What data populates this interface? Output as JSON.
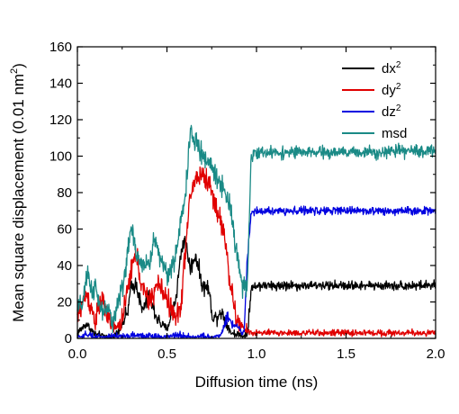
{
  "chart_data": {
    "type": "line",
    "title": "",
    "xlabel": "Diffusion time (ns)",
    "ylabel": "Mean square displacement (0.01 nm",
    "ylabel_unit_sup": "2",
    "ylabel_close": ")",
    "xlim": [
      0.0,
      2.0
    ],
    "ylim": [
      0,
      160
    ],
    "xticks": [
      0.0,
      0.5,
      1.0,
      1.5,
      2.0
    ],
    "xtick_labels": [
      "0.0",
      "0.5",
      "1.0",
      "1.5",
      "2.0"
    ],
    "yticks": [
      0,
      20,
      40,
      60,
      80,
      100,
      120,
      140,
      160
    ],
    "ytick_labels": [
      "0",
      "20",
      "40",
      "60",
      "80",
      "100",
      "120",
      "140",
      "160"
    ],
    "grid": false,
    "legend_position": "top-right",
    "series": [
      {
        "name": "dx",
        "name_sup": "2",
        "color": "#000000",
        "noise": 2.5,
        "points": [
          [
            0.0,
            3
          ],
          [
            0.05,
            8
          ],
          [
            0.1,
            2
          ],
          [
            0.15,
            1
          ],
          [
            0.2,
            0
          ],
          [
            0.24,
            6
          ],
          [
            0.28,
            14
          ],
          [
            0.3,
            28
          ],
          [
            0.33,
            30
          ],
          [
            0.36,
            15
          ],
          [
            0.4,
            22
          ],
          [
            0.45,
            10
          ],
          [
            0.5,
            5
          ],
          [
            0.55,
            22
          ],
          [
            0.58,
            48
          ],
          [
            0.6,
            55
          ],
          [
            0.63,
            38
          ],
          [
            0.66,
            46
          ],
          [
            0.7,
            28
          ],
          [
            0.73,
            28
          ],
          [
            0.76,
            10
          ],
          [
            0.8,
            15
          ],
          [
            0.83,
            9
          ],
          [
            0.86,
            3
          ],
          [
            0.9,
            2
          ],
          [
            0.93,
            1
          ],
          [
            0.95,
            3
          ],
          [
            0.97,
            27
          ],
          [
            1.0,
            29
          ],
          [
            1.25,
            29
          ],
          [
            1.5,
            29
          ],
          [
            1.75,
            29
          ],
          [
            2.0,
            29
          ]
        ]
      },
      {
        "name": "dy",
        "name_sup": "2",
        "color": "#e00000",
        "noise": 3.5,
        "points": [
          [
            0.0,
            12
          ],
          [
            0.05,
            25
          ],
          [
            0.1,
            10
          ],
          [
            0.14,
            22
          ],
          [
            0.18,
            8
          ],
          [
            0.22,
            5
          ],
          [
            0.26,
            14
          ],
          [
            0.3,
            38
          ],
          [
            0.33,
            46
          ],
          [
            0.36,
            28
          ],
          [
            0.4,
            20
          ],
          [
            0.45,
            30
          ],
          [
            0.5,
            22
          ],
          [
            0.55,
            10
          ],
          [
            0.58,
            20
          ],
          [
            0.6,
            45
          ],
          [
            0.63,
            78
          ],
          [
            0.66,
            88
          ],
          [
            0.7,
            90
          ],
          [
            0.74,
            84
          ],
          [
            0.78,
            70
          ],
          [
            0.82,
            58
          ],
          [
            0.86,
            25
          ],
          [
            0.89,
            10
          ],
          [
            0.92,
            6
          ],
          [
            0.95,
            4
          ],
          [
            0.97,
            3
          ],
          [
            1.0,
            3
          ],
          [
            1.5,
            3
          ],
          [
            2.0,
            3
          ]
        ]
      },
      {
        "name": "dz",
        "name_sup": "2",
        "color": "#0000e0",
        "noise": 2.2,
        "points": [
          [
            0.0,
            0
          ],
          [
            0.05,
            2
          ],
          [
            0.1,
            1
          ],
          [
            0.15,
            0
          ],
          [
            0.2,
            1
          ],
          [
            0.25,
            0
          ],
          [
            0.3,
            2
          ],
          [
            0.4,
            1
          ],
          [
            0.5,
            0
          ],
          [
            0.55,
            2
          ],
          [
            0.6,
            1
          ],
          [
            0.65,
            0
          ],
          [
            0.7,
            1
          ],
          [
            0.75,
            0
          ],
          [
            0.8,
            2
          ],
          [
            0.84,
            12
          ],
          [
            0.87,
            8
          ],
          [
            0.9,
            5
          ],
          [
            0.93,
            3
          ],
          [
            0.95,
            45
          ],
          [
            0.97,
            69
          ],
          [
            1.0,
            70
          ],
          [
            1.25,
            70
          ],
          [
            1.5,
            70
          ],
          [
            1.75,
            70
          ],
          [
            2.0,
            70
          ]
        ]
      },
      {
        "name": "msd",
        "name_sup": "",
        "color": "#1a8a86",
        "noise": 3.2,
        "points": [
          [
            0.0,
            15
          ],
          [
            0.03,
            20
          ],
          [
            0.06,
            36
          ],
          [
            0.08,
            26
          ],
          [
            0.1,
            28
          ],
          [
            0.13,
            15
          ],
          [
            0.16,
            16
          ],
          [
            0.2,
            10
          ],
          [
            0.24,
            24
          ],
          [
            0.27,
            38
          ],
          [
            0.3,
            62
          ],
          [
            0.33,
            44
          ],
          [
            0.36,
            42
          ],
          [
            0.4,
            40
          ],
          [
            0.43,
            55
          ],
          [
            0.46,
            45
          ],
          [
            0.5,
            36
          ],
          [
            0.54,
            40
          ],
          [
            0.57,
            60
          ],
          [
            0.6,
            76
          ],
          [
            0.63,
            112
          ],
          [
            0.66,
            108
          ],
          [
            0.7,
            100
          ],
          [
            0.74,
            96
          ],
          [
            0.78,
            88
          ],
          [
            0.82,
            82
          ],
          [
            0.86,
            70
          ],
          [
            0.89,
            46
          ],
          [
            0.92,
            30
          ],
          [
            0.95,
            28
          ],
          [
            0.97,
            100
          ],
          [
            1.0,
            102
          ],
          [
            1.5,
            102
          ],
          [
            2.0,
            103
          ]
        ]
      }
    ]
  }
}
